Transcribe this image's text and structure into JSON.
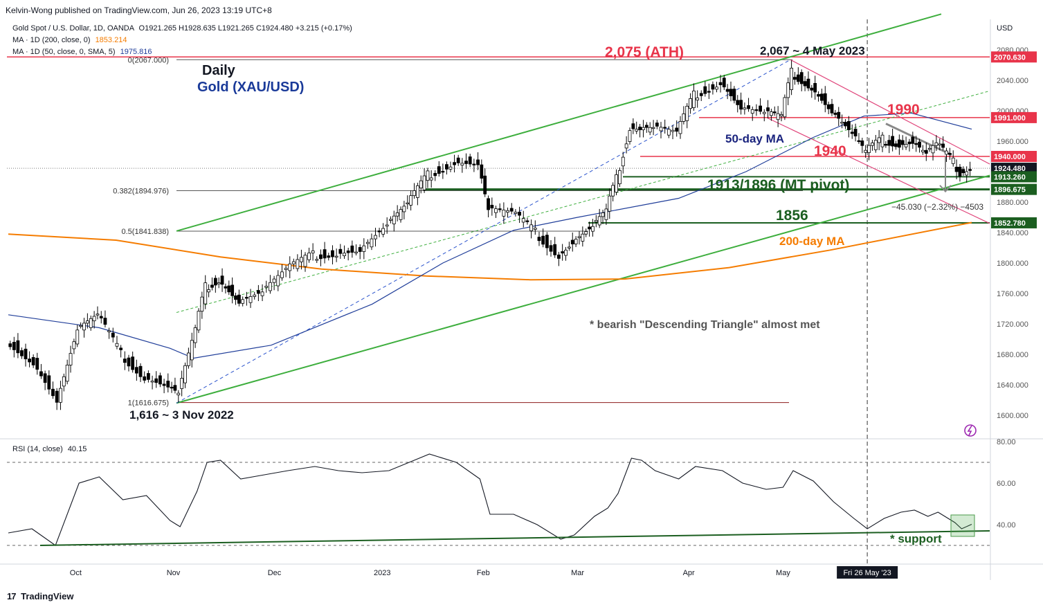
{
  "header": {
    "publisher": "Kelvin-Wong published on TradingView.com, Jun 26, 2023 13:19 UTC+8"
  },
  "legend": {
    "symbol": "Gold Spot / U.S. Dollar, 1D, OANDA",
    "ohlc": "O1921.265  H1928.635  L1921.265  C1924.480  +3.215 (+0.17%)",
    "ma200_label": "MA · 1D (200, close, 0)",
    "ma200_value": "1853.214",
    "ma50_label": "MA · 1D (50, close, 0, SMA, 5)",
    "ma50_value": "1975.816",
    "rsi_label": "RSI (14, close)",
    "rsi_value": "40.15"
  },
  "footer": {
    "brand": "TradingView"
  },
  "colors": {
    "up": "#ffffff",
    "candle": "#000000",
    "ma50": "#1f3d99",
    "ma200": "#f57c00",
    "channel": "#3dae3d",
    "red": "#e8344a",
    "darkgreen": "#1b5e20",
    "label_navy": "#1a237e"
  },
  "chart_data": {
    "type": "candlestick",
    "title": "Daily",
    "subtitle": "Gold (XAU/USD)",
    "currency": "USD",
    "ylim": [
      1576,
      2127
    ],
    "y_ticks": [
      1600,
      1640,
      1680,
      1720,
      1760,
      1800,
      1840,
      1880,
      1920,
      1960,
      2000,
      2040,
      2080
    ],
    "y_tick_labels": [
      "1600.000",
      "1640.000",
      "1680.000",
      "1720.000",
      "1760.000",
      "1800.000",
      "1840.000",
      "1880.000",
      "1920.000",
      "1960.000",
      "2000.000",
      "2040.000",
      "2080.000"
    ],
    "x_labels": [
      {
        "date": "2022-10-03",
        "label": "Oct"
      },
      {
        "date": "2022-11-01",
        "label": "Nov"
      },
      {
        "date": "2022-12-01",
        "label": "Dec"
      },
      {
        "date": "2023-01-02",
        "label": "2023"
      },
      {
        "date": "2023-02-01",
        "label": "Feb"
      },
      {
        "date": "2023-03-01",
        "label": "Mar"
      },
      {
        "date": "2023-04-03",
        "label": "Apr"
      },
      {
        "date": "2023-05-01",
        "label": "May"
      }
    ],
    "x_highlight": {
      "date": "2023-05-26",
      "label": "Fri 26 May '23"
    },
    "date_range": [
      "2022-09-13",
      "2023-06-26"
    ],
    "price_points": [
      [
        "2022-09-13",
        1700
      ],
      [
        "2022-09-21",
        1672
      ],
      [
        "2022-09-28",
        1620
      ],
      [
        "2022-10-04",
        1712
      ],
      [
        "2022-10-10",
        1730
      ],
      [
        "2022-10-17",
        1680
      ],
      [
        "2022-10-24",
        1652
      ],
      [
        "2022-10-31",
        1640
      ],
      [
        "2022-11-03",
        1629
      ],
      [
        "2022-11-08",
        1712
      ],
      [
        "2022-11-11",
        1768
      ],
      [
        "2022-11-15",
        1780
      ],
      [
        "2022-11-21",
        1750
      ],
      [
        "2022-11-28",
        1762
      ],
      [
        "2022-12-05",
        1790
      ],
      [
        "2022-12-13",
        1810
      ],
      [
        "2022-12-20",
        1815
      ],
      [
        "2022-12-27",
        1818
      ],
      [
        "2023-01-04",
        1850
      ],
      [
        "2023-01-10",
        1876
      ],
      [
        "2023-01-16",
        1915
      ],
      [
        "2023-01-24",
        1935
      ],
      [
        "2023-01-31",
        1932
      ],
      [
        "2023-02-03",
        1870
      ],
      [
        "2023-02-10",
        1865
      ],
      [
        "2023-02-17",
        1840
      ],
      [
        "2023-02-24",
        1812
      ],
      [
        "2023-02-28",
        1828
      ],
      [
        "2023-03-06",
        1848
      ],
      [
        "2023-03-10",
        1868
      ],
      [
        "2023-03-13",
        1910
      ],
      [
        "2023-03-17",
        1980
      ],
      [
        "2023-03-20",
        1978
      ],
      [
        "2023-03-24",
        1978
      ],
      [
        "2023-03-31",
        1970
      ],
      [
        "2023-04-05",
        2020
      ],
      [
        "2023-04-13",
        2040
      ],
      [
        "2023-04-19",
        2005
      ],
      [
        "2023-04-26",
        1998
      ],
      [
        "2023-05-01",
        1992
      ],
      [
        "2023-05-04",
        2050
      ],
      [
        "2023-05-10",
        2033
      ],
      [
        "2023-05-16",
        2000
      ],
      [
        "2023-05-22",
        1970
      ],
      [
        "2023-05-26",
        1945
      ],
      [
        "2023-05-31",
        1962
      ],
      [
        "2023-06-05",
        1958
      ],
      [
        "2023-06-09",
        1960
      ],
      [
        "2023-06-13",
        1944
      ],
      [
        "2023-06-16",
        1955
      ],
      [
        "2023-06-21",
        1932
      ],
      [
        "2023-06-23",
        1920
      ],
      [
        "2023-06-26",
        1924.48
      ]
    ],
    "ma200": [
      [
        "2022-09-13",
        1838
      ],
      [
        "2022-10-15",
        1830
      ],
      [
        "2022-11-15",
        1808
      ],
      [
        "2022-12-15",
        1792
      ],
      [
        "2023-01-15",
        1783
      ],
      [
        "2023-02-15",
        1778
      ],
      [
        "2023-03-15",
        1779
      ],
      [
        "2023-04-15",
        1794
      ],
      [
        "2023-05-15",
        1817
      ],
      [
        "2023-06-26",
        1853.214
      ]
    ],
    "ma50": [
      [
        "2022-09-13",
        1732
      ],
      [
        "2022-10-10",
        1715
      ],
      [
        "2022-10-31",
        1688
      ],
      [
        "2022-11-07",
        1675
      ],
      [
        "2022-11-30",
        1692
      ],
      [
        "2022-12-30",
        1746
      ],
      [
        "2023-01-20",
        1800
      ],
      [
        "2023-02-10",
        1843
      ],
      [
        "2023-03-01",
        1860
      ],
      [
        "2023-03-31",
        1885
      ],
      [
        "2023-04-20",
        1920
      ],
      [
        "2023-05-10",
        1965
      ],
      [
        "2023-05-25",
        1993
      ],
      [
        "2023-06-08",
        1997
      ],
      [
        "2023-06-26",
        1975.816
      ]
    ],
    "rsi": {
      "ylim": [
        20,
        85
      ],
      "ticks": [
        40,
        60,
        80
      ],
      "tick_labels": [
        "40.00",
        "60.00",
        "80.00"
      ],
      "levels": [
        30,
        70
      ],
      "points": [
        [
          "2022-09-13",
          36
        ],
        [
          "2022-09-20",
          38
        ],
        [
          "2022-09-27",
          30
        ],
        [
          "2022-10-04",
          60
        ],
        [
          "2022-10-10",
          63
        ],
        [
          "2022-10-17",
          52
        ],
        [
          "2022-10-24",
          54
        ],
        [
          "2022-10-31",
          42
        ],
        [
          "2022-11-03",
          39
        ],
        [
          "2022-11-08",
          56
        ],
        [
          "2022-11-11",
          70
        ],
        [
          "2022-11-15",
          71
        ],
        [
          "2022-11-21",
          62
        ],
        [
          "2022-11-28",
          64
        ],
        [
          "2022-12-05",
          66
        ],
        [
          "2022-12-13",
          68
        ],
        [
          "2022-12-20",
          66
        ],
        [
          "2022-12-27",
          65
        ],
        [
          "2023-01-04",
          66
        ],
        [
          "2023-01-10",
          70
        ],
        [
          "2023-01-16",
          74
        ],
        [
          "2023-01-24",
          70
        ],
        [
          "2023-01-31",
          62
        ],
        [
          "2023-02-03",
          45
        ],
        [
          "2023-02-10",
          45
        ],
        [
          "2023-02-17",
          40
        ],
        [
          "2023-02-24",
          33
        ],
        [
          "2023-02-28",
          35
        ],
        [
          "2023-03-06",
          44
        ],
        [
          "2023-03-10",
          48
        ],
        [
          "2023-03-13",
          55
        ],
        [
          "2023-03-17",
          72
        ],
        [
          "2023-03-20",
          71
        ],
        [
          "2023-03-24",
          66
        ],
        [
          "2023-03-31",
          62
        ],
        [
          "2023-04-05",
          68
        ],
        [
          "2023-04-13",
          66
        ],
        [
          "2023-04-19",
          60
        ],
        [
          "2023-04-26",
          57
        ],
        [
          "2023-05-01",
          58
        ],
        [
          "2023-05-04",
          66
        ],
        [
          "2023-05-10",
          61
        ],
        [
          "2023-05-16",
          51
        ],
        [
          "2023-05-22",
          43
        ],
        [
          "2023-05-26",
          38
        ],
        [
          "2023-05-31",
          43
        ],
        [
          "2023-06-05",
          46
        ],
        [
          "2023-06-09",
          47
        ],
        [
          "2023-06-13",
          44
        ],
        [
          "2023-06-16",
          46
        ],
        [
          "2023-06-21",
          41
        ],
        [
          "2023-06-23",
          38
        ],
        [
          "2023-06-26",
          40.15
        ]
      ]
    },
    "fib": [
      {
        "label": "0(2067.000)",
        "value": 2067
      },
      {
        "label": "0.382(1894.976)",
        "value": 1894.976
      },
      {
        "label": "0.5(1841.838)",
        "value": 1841.838
      },
      {
        "label": "1(1616.675)",
        "value": 1616.675
      }
    ],
    "price_tags": [
      {
        "value": 2070.63,
        "label": "2070.630",
        "bg": "#e8344a",
        "fg": "#ffffff"
      },
      {
        "value": 1991.0,
        "label": "1991.000",
        "bg": "#e8344a",
        "fg": "#ffffff"
      },
      {
        "value": 1940.0,
        "label": "1940.000",
        "bg": "#e8344a",
        "fg": "#ffffff"
      },
      {
        "value": 1924.48,
        "label": "1924.480",
        "bg": "#131722",
        "fg": "#ffffff"
      },
      {
        "value": 1913.26,
        "label": "1913.260",
        "bg": "#1b5e20",
        "fg": "#ffffff"
      },
      {
        "value": 1896.675,
        "label": "1896.675",
        "bg": "#1b5e20",
        "fg": "#ffffff"
      },
      {
        "value": 1852.78,
        "label": "1852.780",
        "bg": "#1b5e20",
        "fg": "#ffffff"
      }
    ],
    "annotations": {
      "ath": "2,075 (ATH)",
      "peak": "2,067 ~ 4 May 2023",
      "low": "1,616 ~ 3 Nov 2022",
      "r1990": "1990",
      "r1940": "1940",
      "pivot": "1913/1896 (MT pivot)",
      "s1856": "1856",
      "ma50_label": "50-day MA",
      "ma200_label": "200-day MA",
      "triangle_note": "* bearish \"Descending Triangle\" almost met",
      "measure": "−45.030 (−2.32%) −4503",
      "rsi_support": "* support"
    }
  }
}
